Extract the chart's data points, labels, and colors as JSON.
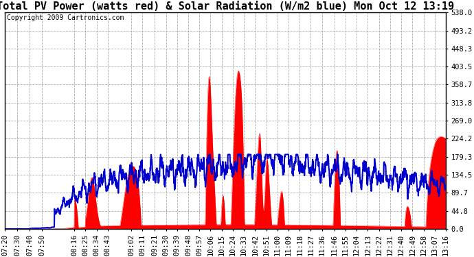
{
  "title": "Total PV Power (watts red) & Solar Radiation (W/m2 blue) Mon Oct 12 13:19",
  "copyright_text": "Copyright 2009 Cartronics.com",
  "y_min": 0.0,
  "y_max": 538.0,
  "y_ticks": [
    0.0,
    44.8,
    89.7,
    134.5,
    179.3,
    224.2,
    269.0,
    313.8,
    358.7,
    403.5,
    448.3,
    493.2,
    538.0
  ],
  "x_labels": [
    "07:20",
    "07:30",
    "07:40",
    "07:50",
    "08:16",
    "08:25",
    "08:34",
    "08:43",
    "09:02",
    "09:11",
    "09:21",
    "09:30",
    "09:39",
    "09:48",
    "09:57",
    "10:06",
    "10:15",
    "10:24",
    "10:33",
    "10:42",
    "10:51",
    "11:00",
    "11:09",
    "11:18",
    "11:27",
    "11:36",
    "11:46",
    "11:55",
    "12:04",
    "12:13",
    "12:22",
    "12:31",
    "12:40",
    "12:49",
    "12:58",
    "13:07",
    "13:16"
  ],
  "bg_color": "#ffffff",
  "plot_bg_color": "#ffffff",
  "pv_fill_color": "#ff0000",
  "solar_line_color": "#0000cc",
  "grid_color": "#aaaaaa",
  "grid_style": "--",
  "title_fontsize": 11,
  "tick_fontsize": 7.5,
  "copyright_fontsize": 7
}
